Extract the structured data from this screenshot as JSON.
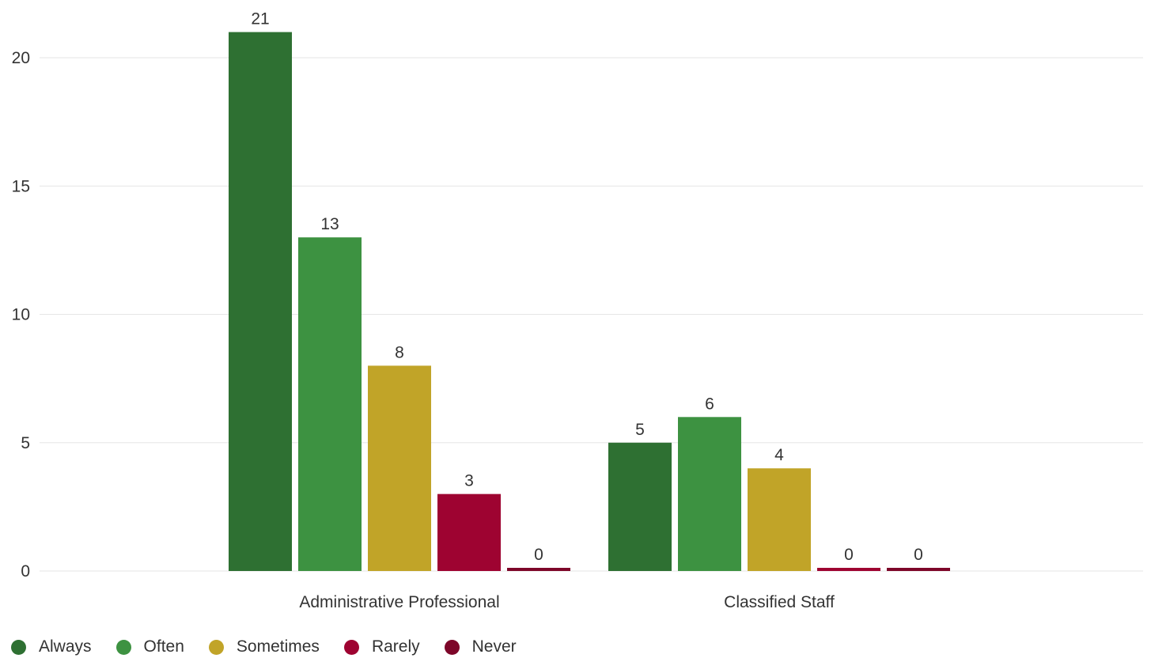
{
  "chart_data": {
    "type": "bar",
    "categories": [
      "Administrative Professional",
      "Classified Staff"
    ],
    "series": [
      {
        "name": "Always",
        "color": "#2e7032",
        "values": [
          21,
          5
        ]
      },
      {
        "name": "Often",
        "color": "#3d9241",
        "values": [
          13,
          6
        ]
      },
      {
        "name": "Sometimes",
        "color": "#c1a428",
        "values": [
          8,
          4
        ]
      },
      {
        "name": "Rarely",
        "color": "#9e0331",
        "values": [
          3,
          0
        ]
      },
      {
        "name": "Never",
        "color": "#7d0629",
        "values": [
          0,
          0
        ]
      }
    ],
    "y_ticks": [
      "0",
      "5",
      "10",
      "15",
      "20"
    ],
    "ylim": [
      0,
      21
    ],
    "xlabel": "",
    "ylabel": "",
    "grid": true,
    "legend_position": "bottom-left",
    "data_labels": true,
    "gridline_color": "#e6e6e6"
  }
}
